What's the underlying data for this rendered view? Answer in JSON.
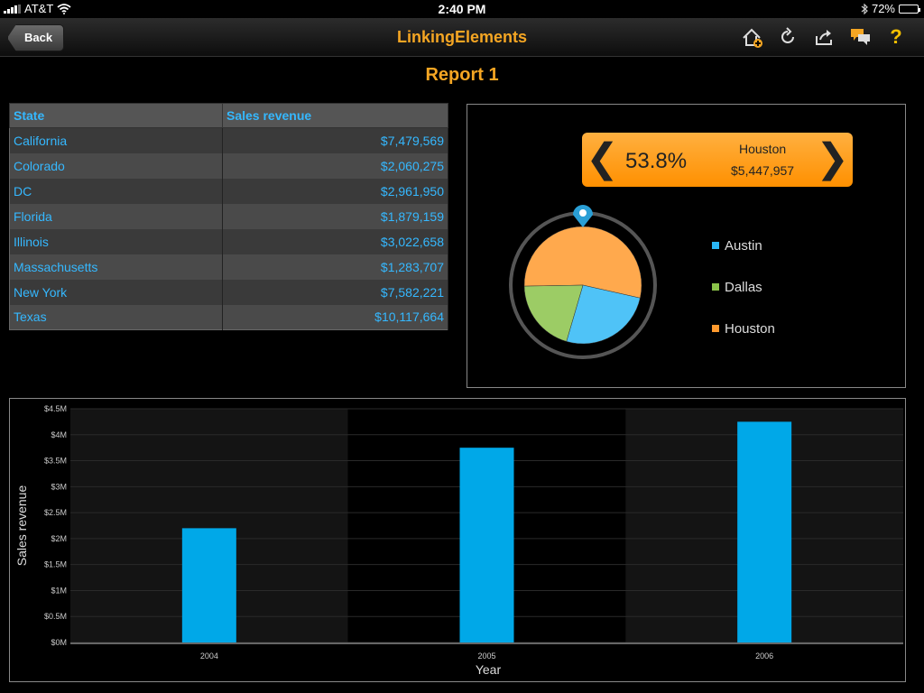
{
  "status_bar": {
    "carrier": "AT&T",
    "time": "2:40 PM",
    "battery": "72%",
    "battery_level": 0.72
  },
  "nav": {
    "back_label": "Back",
    "title": "LinkingElements",
    "icons": [
      "home-add-icon",
      "refresh-icon",
      "share-icon",
      "comments-icon",
      "help-icon"
    ],
    "help_glyph": "?"
  },
  "report": {
    "title": "Report 1"
  },
  "table": {
    "headers": [
      "State",
      "Sales revenue"
    ],
    "rows": [
      [
        "California",
        "$7,479,569"
      ],
      [
        "Colorado",
        "$2,060,275"
      ],
      [
        "DC",
        "$2,961,950"
      ],
      [
        "Florida",
        "$1,879,159"
      ],
      [
        "Illinois",
        "$3,022,658"
      ],
      [
        "Massachusetts",
        "$1,283,707"
      ],
      [
        "New York",
        "$7,582,221"
      ],
      [
        "Texas",
        "$10,117,664"
      ]
    ]
  },
  "pie": {
    "selector": {
      "percent": "53.8%",
      "name": "Houston",
      "value": "$5,447,957",
      "prev_glyph": "❮",
      "next_glyph": "❯"
    },
    "legend": [
      {
        "label": "Austin",
        "color": "#4fc3f7"
      },
      {
        "label": "Dallas",
        "color": "#9ccc65"
      },
      {
        "label": "Houston",
        "color": "#ffa94d"
      }
    ]
  },
  "chart_data": [
    {
      "type": "pie",
      "categories": [
        "Houston",
        "Austin",
        "Dallas"
      ],
      "values": [
        53.8,
        26.0,
        20.2
      ],
      "colors": [
        "#ffa94d",
        "#4fc3f7",
        "#9ccc65"
      ]
    },
    {
      "type": "bar",
      "categories": [
        "2004",
        "2005",
        "2006"
      ],
      "values": [
        2.2,
        3.75,
        4.25
      ],
      "ylabel": "Sales revenue",
      "xlabel": "Year",
      "yticks": [
        "$0M",
        "$0.5M",
        "$1M",
        "$1.5M",
        "$2M",
        "$2.5M",
        "$3M",
        "$3.5M",
        "$4M",
        "$4.5M"
      ],
      "ylim": [
        0,
        4.5
      ],
      "bar_color": "#00a8e8"
    }
  ]
}
